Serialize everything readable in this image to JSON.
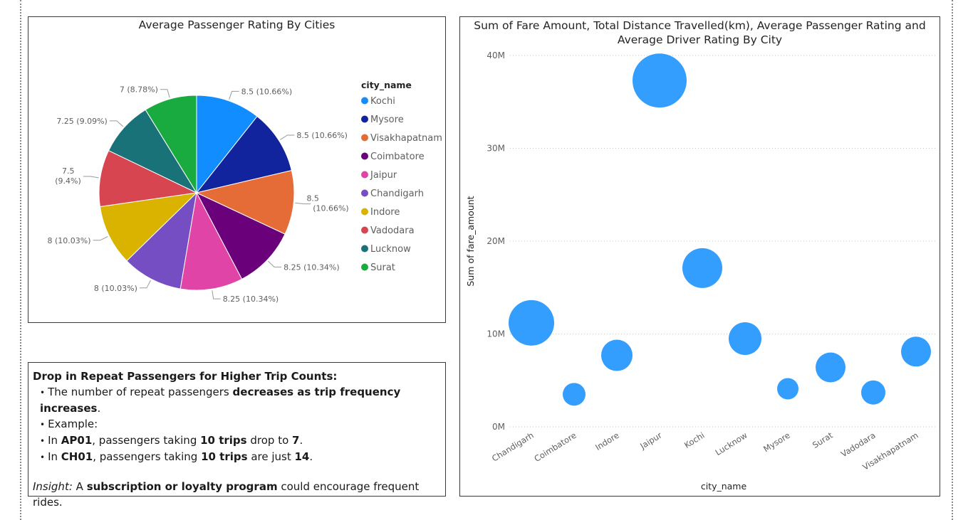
{
  "chart_data": [
    {
      "type": "pie",
      "title": "Average Passenger Rating By Cities",
      "legend_title": "city_name",
      "legend_position": "right",
      "slices": [
        {
          "name": "Kochi",
          "value": 8.5,
          "label": "8.5 (10.66%)",
          "color": "#118DFF"
        },
        {
          "name": "Mysore",
          "value": 8.5,
          "label": "8.5 (10.66%)",
          "color": "#12239E"
        },
        {
          "name": "Visakhapatnam",
          "value": 8.5,
          "label": "8.5 (10.66%)",
          "color": "#E66C37"
        },
        {
          "name": "Coimbatore",
          "value": 8.25,
          "label": "8.25 (10.34%)",
          "color": "#6B007B"
        },
        {
          "name": "Jaipur",
          "value": 8.25,
          "label": "8.25 (10.34%)",
          "color": "#E044A7"
        },
        {
          "name": "Chandigarh",
          "value": 8,
          "label": "8 (10.03%)",
          "color": "#744EC2"
        },
        {
          "name": "Indore",
          "value": 8,
          "label": "8 (10.03%)",
          "color": "#D9B300"
        },
        {
          "name": "Vadodara",
          "value": 7.5,
          "label": "7.5 (9.4%)",
          "color": "#D64550"
        },
        {
          "name": "Lucknow",
          "value": 7.25,
          "label": "7.25 (9.09%)",
          "color": "#197278"
        },
        {
          "name": "Surat",
          "value": 7,
          "label": "7 (8.78%)",
          "color": "#1AAB40"
        }
      ]
    },
    {
      "type": "scatter",
      "title": "Sum of Fare Amount, Total Distance Travelled(km), Average Passenger Rating and Average Driver Rating By City",
      "xlabel": "city_name",
      "ylabel": "Sum of fare_amount",
      "ylim": [
        0,
        40000000
      ],
      "yticks": [
        {
          "value": 0,
          "label": "0M"
        },
        {
          "value": 10000000,
          "label": "10M"
        },
        {
          "value": 20000000,
          "label": "20M"
        },
        {
          "value": 30000000,
          "label": "30M"
        },
        {
          "value": 40000000,
          "label": "40M"
        }
      ],
      "grid": true,
      "color": "#118DFF",
      "categories": [
        "Chandigarh",
        "Coimbatore",
        "Indore",
        "Jaipur",
        "Kochi",
        "Lucknow",
        "Mysore",
        "Surat",
        "Vadodara",
        "Visakhapatnam"
      ],
      "values": [
        11200000,
        3500000,
        7700000,
        37300000,
        17100000,
        9500000,
        4100000,
        6400000,
        3700000,
        8100000
      ],
      "size_values": [
        32,
        16,
        22,
        38,
        28,
        23,
        15,
        21,
        17,
        21
      ]
    }
  ],
  "insight_box": {
    "heading": "Drop in Repeat Passengers for Higher Trip Counts:",
    "bullets": [
      [
        {
          "t": "The number of repeat passengers "
        },
        {
          "t": "decreases as trip frequency increases",
          "b": true
        },
        {
          "t": "."
        }
      ],
      [
        {
          "t": "Example:"
        }
      ],
      [
        {
          "t": "In "
        },
        {
          "t": "AP01",
          "b": true
        },
        {
          "t": ", passengers taking "
        },
        {
          "t": "10 trips",
          "b": true
        },
        {
          "t": " drop to "
        },
        {
          "t": "7",
          "b": true
        },
        {
          "t": "."
        }
      ],
      [
        {
          "t": "In "
        },
        {
          "t": "CH01",
          "b": true
        },
        {
          "t": ", passengers taking "
        },
        {
          "t": "10 trips",
          "b": true
        },
        {
          "t": " are just "
        },
        {
          "t": "14",
          "b": true
        },
        {
          "t": "."
        }
      ]
    ],
    "bullet_char": "•",
    "insight_label": "Insight:",
    "insight_text": [
      {
        "t": " A "
      },
      {
        "t": "subscription or loyalty program",
        "b": true
      },
      {
        "t": " could encourage frequent rides."
      }
    ]
  }
}
